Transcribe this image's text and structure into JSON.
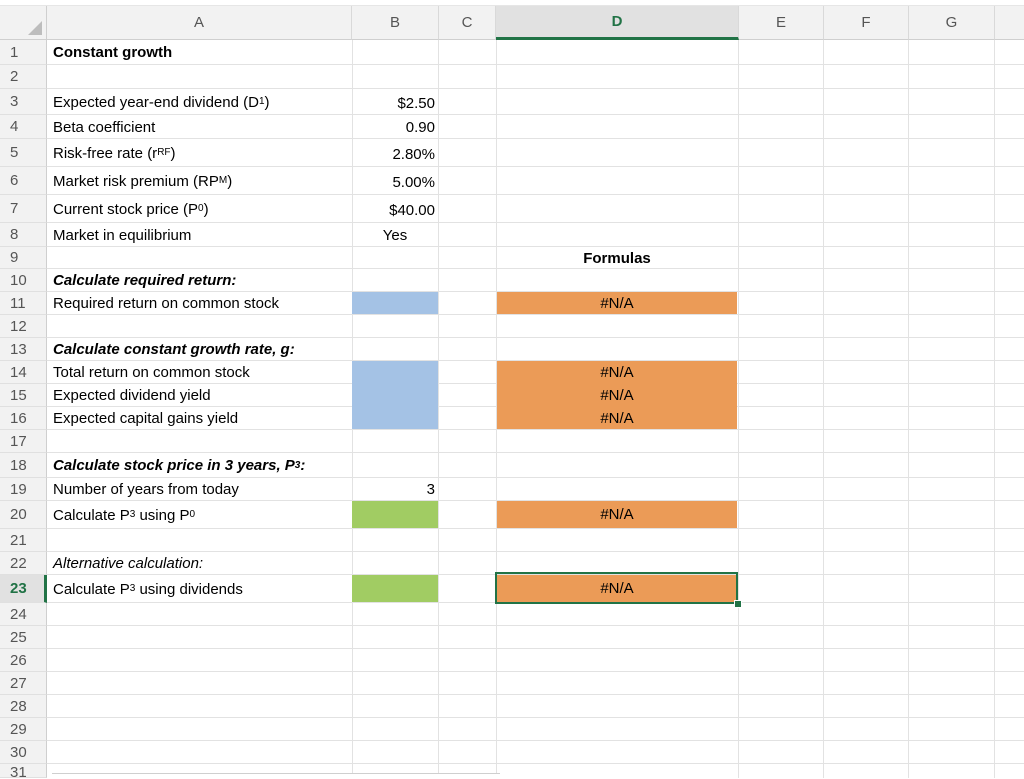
{
  "columns": [
    "A",
    "B",
    "C",
    "D",
    "E",
    "F",
    "G"
  ],
  "active_column": "D",
  "rows": [
    "1",
    "2",
    "3",
    "4",
    "5",
    "6",
    "7",
    "8",
    "9",
    "10",
    "11",
    "12",
    "13",
    "14",
    "15",
    "16",
    "17",
    "18",
    "19",
    "20",
    "21",
    "22",
    "23",
    "24",
    "25",
    "26",
    "27",
    "28",
    "29",
    "30",
    "31"
  ],
  "active_row": "23",
  "cells": {
    "A1": "Constant growth",
    "A3": {
      "pre": "Expected year-end dividend (D",
      "sub": "1",
      "post": ")"
    },
    "A4": "Beta coefficient",
    "A5": {
      "pre": "Risk-free rate (r",
      "sub": "RF",
      "post": ")"
    },
    "A6": {
      "pre": "Market risk premium (RP",
      "sub": "M",
      "post": ")"
    },
    "A7": {
      "pre": "Current stock price (P",
      "sub": "0",
      "post": ")"
    },
    "A8": "Market in equilibrium",
    "A10": "Calculate required return:",
    "A11": "Required return on common stock",
    "A13": "Calculate constant growth rate, g:",
    "A14": "Total return on common stock",
    "A15": "Expected dividend yield",
    "A16": "Expected capital gains yield",
    "A18": {
      "pre": "Calculate stock price in 3 years, P",
      "sub": "3",
      "post": ":"
    },
    "A19": "Number of years from today",
    "A20": {
      "pre": "Calculate P",
      "sub": "3",
      "mid": " using P",
      "sub2": "0",
      "post": ""
    },
    "A22": "Alternative calculation:",
    "A23": {
      "pre": "Calculate P",
      "sub": "3",
      "post": " using dividends"
    },
    "B3": "$2.50",
    "B4": "0.90",
    "B5": "2.80%",
    "B6": "5.00%",
    "B7": "$40.00",
    "B8": "Yes",
    "B19": "3",
    "D9": "Formulas",
    "D11": "#N/A",
    "D14": "#N/A",
    "D15": "#N/A",
    "D16": "#N/A",
    "D20": "#N/A",
    "D23": "#N/A"
  },
  "colors": {
    "input_blue": "#a4c2e5",
    "input_green": "#a1cc63",
    "formula_orange": "#eb9b57",
    "excel_green": "#217346"
  }
}
